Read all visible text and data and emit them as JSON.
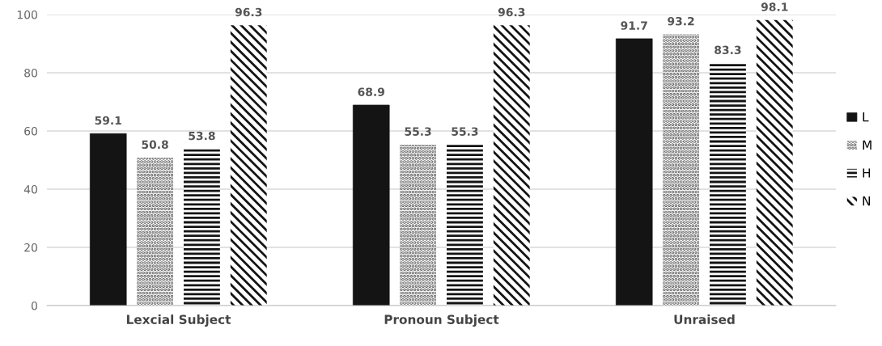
{
  "chart_data": {
    "type": "bar",
    "categories": [
      "Lexcial Subject",
      "Pronoun Subject",
      "Unraised"
    ],
    "series": [
      {
        "name": "L",
        "color": "#141414",
        "values": [
          59.1,
          68.9,
          91.7
        ]
      },
      {
        "name": "M",
        "color": "#5a5a5a",
        "values": [
          50.8,
          55.3,
          93.2
        ]
      },
      {
        "name": "H",
        "color": "#141414",
        "values": [
          53.8,
          55.3,
          83.3
        ]
      },
      {
        "name": "N",
        "color": "#141414",
        "values": [
          96.3,
          96.3,
          98.1
        ]
      }
    ],
    "ylim": [
      0,
      100
    ],
    "yticks": [
      0,
      20,
      40,
      60,
      80,
      100
    ],
    "grid": "y",
    "legend": "right",
    "data_labels": true
  }
}
